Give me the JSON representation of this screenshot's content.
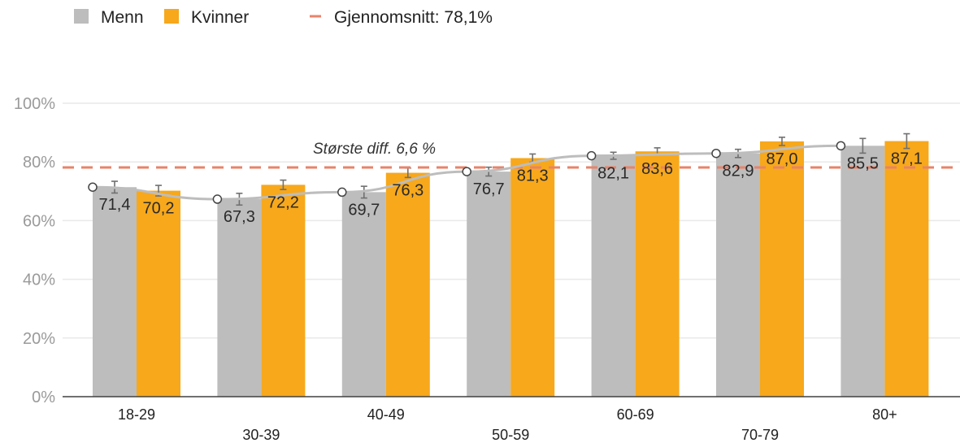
{
  "chart_data": {
    "type": "bar",
    "categories": [
      "18-29",
      "30-39",
      "40-49",
      "50-59",
      "60-69",
      "70-79",
      "80+"
    ],
    "series": [
      {
        "name": "Menn",
        "values": [
          71.4,
          67.3,
          69.7,
          76.7,
          82.1,
          82.9,
          85.5
        ],
        "error": [
          2.0,
          2.0,
          2.0,
          1.5,
          1.2,
          1.4,
          2.5
        ]
      },
      {
        "name": "Kvinner",
        "values": [
          70.2,
          72.2,
          76.3,
          81.3,
          83.6,
          87.0,
          87.1
        ],
        "error": [
          1.8,
          1.6,
          1.6,
          1.4,
          1.2,
          1.4,
          2.5
        ]
      }
    ],
    "trend_line": {
      "series": "Menn",
      "color": "#bdbdbd"
    },
    "average_line": {
      "label": "Gjennomsnitt: 78,1%",
      "value": 78.1,
      "color": "#e8836a"
    },
    "annotation": "Største diff. 6,6 %",
    "y_ticks": [
      "0%",
      "20%",
      "40%",
      "60%",
      "80%",
      "100%"
    ],
    "ylim": [
      0,
      100
    ],
    "grid": true,
    "legend_position": "top-left",
    "colors": {
      "Menn": "#bdbdbd",
      "Kvinner": "#f7a81b"
    }
  }
}
